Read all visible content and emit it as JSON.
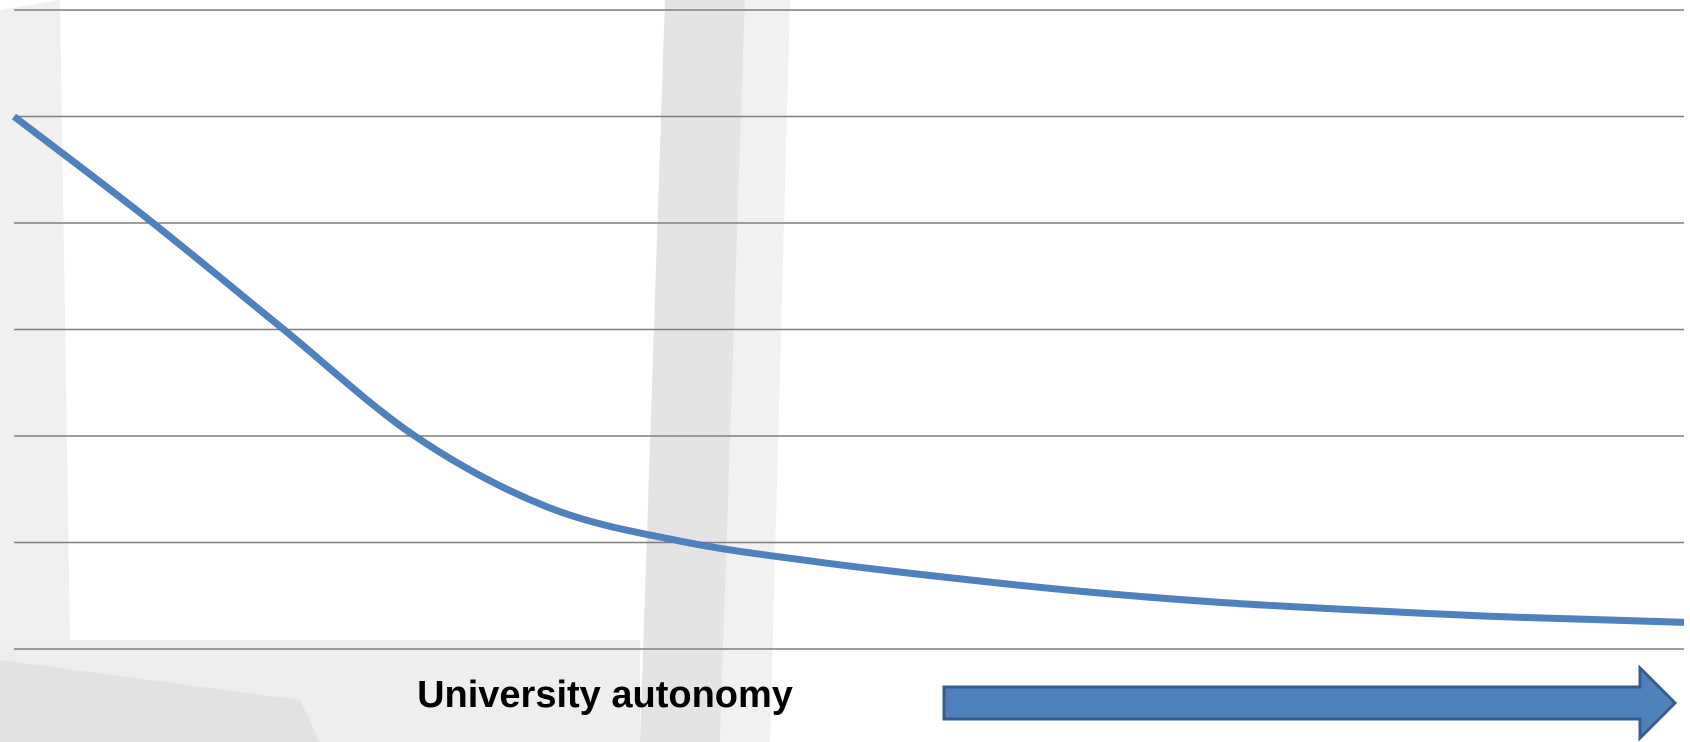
{
  "chart_data": {
    "type": "line",
    "title": "",
    "xlabel": "University autonomy",
    "ylabel": "",
    "grid": true,
    "gridline_count": 7,
    "xlim": [
      0,
      100
    ],
    "ylim": [
      0,
      6
    ],
    "series": [
      {
        "x": [
          0,
          8,
          16,
          24,
          32,
          40,
          48,
          56,
          64,
          72,
          80,
          88,
          96,
          100
        ],
        "values": [
          5.0,
          4.04,
          3.02,
          2.0,
          1.33,
          1.01,
          0.82,
          0.67,
          0.54,
          0.44,
          0.37,
          0.31,
          0.27,
          0.25
        ]
      }
    ]
  },
  "colors": {
    "line": "#4f81bd",
    "arrow_fill": "#4f81bd",
    "arrow_stroke": "#385d8a",
    "grid": "#7f7f7f",
    "background_frame": "#e6e6e6"
  },
  "decorations": {
    "arrow_icon": "right-arrow-icon"
  }
}
